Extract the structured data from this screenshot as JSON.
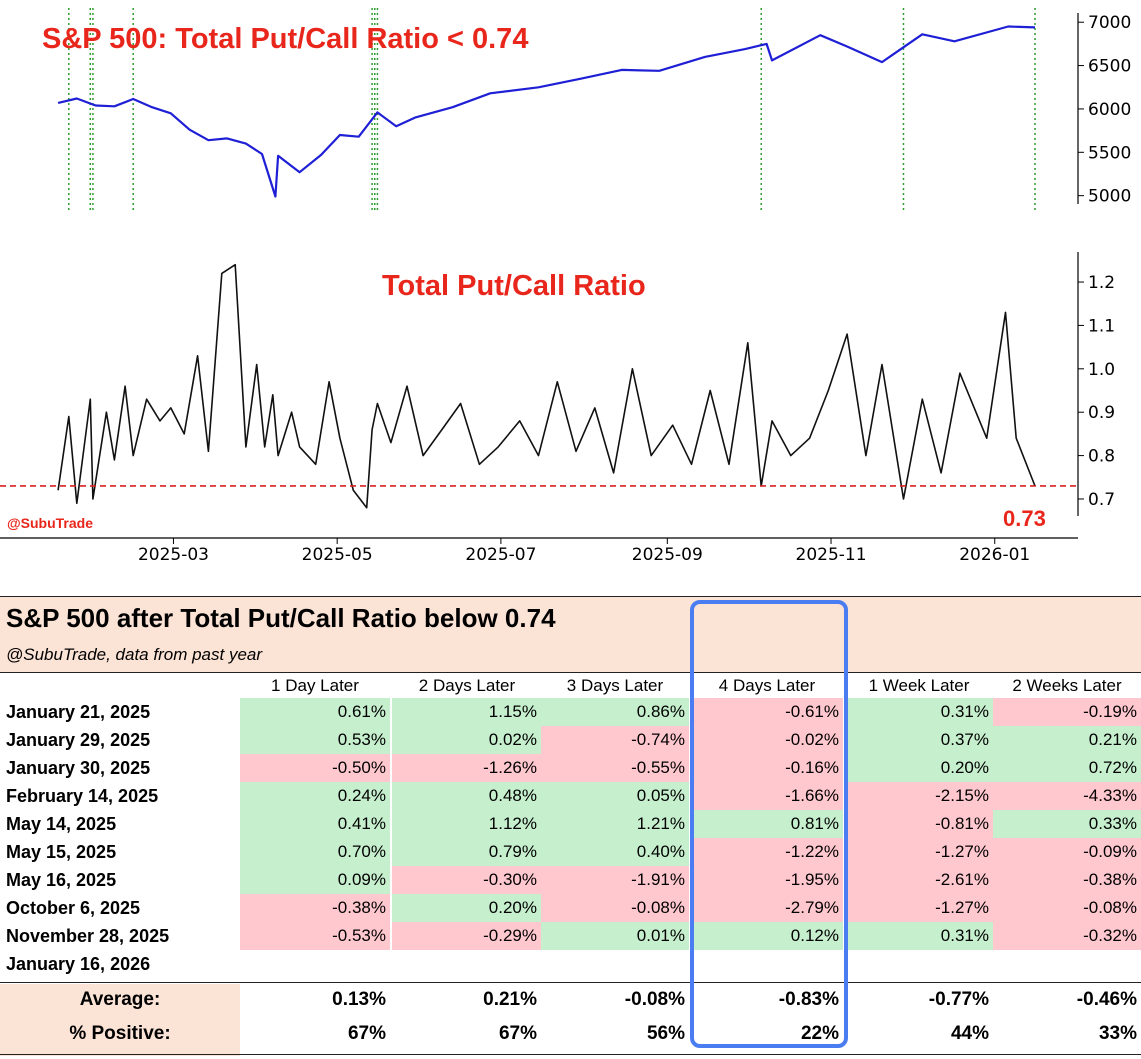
{
  "chart_data": [
    {
      "type": "line",
      "title": "S&P 500: Total Put/Call Ratio < 0.74",
      "series": [
        {
          "name": "S&P 500",
          "color": "#1f1fd6"
        }
      ],
      "x": [
        "2025-01-17",
        "2025-01-24",
        "2025-01-31",
        "2025-02-07",
        "2025-02-14",
        "2025-02-21",
        "2025-02-28",
        "2025-03-07",
        "2025-03-14",
        "2025-03-21",
        "2025-03-28",
        "2025-04-03",
        "2025-04-08",
        "2025-04-09",
        "2025-04-17",
        "2025-04-25",
        "2025-05-02",
        "2025-05-09",
        "2025-05-16",
        "2025-05-23",
        "2025-05-30",
        "2025-06-13",
        "2025-06-27",
        "2025-07-15",
        "2025-07-31",
        "2025-08-15",
        "2025-08-29",
        "2025-09-15",
        "2025-09-30",
        "2025-10-08",
        "2025-10-10",
        "2025-10-28",
        "2025-11-07",
        "2025-11-20",
        "2025-12-05",
        "2025-12-17",
        "2026-01-06",
        "2026-01-16"
      ],
      "values": [
        6070,
        6120,
        6040,
        6030,
        6115,
        6020,
        5950,
        5760,
        5640,
        5660,
        5600,
        5480,
        4990,
        5460,
        5270,
        5470,
        5700,
        5680,
        5960,
        5800,
        5900,
        6020,
        6180,
        6250,
        6350,
        6450,
        6440,
        6600,
        6690,
        6750,
        6560,
        6850,
        6720,
        6540,
        6860,
        6780,
        6950,
        6940
      ],
      "y_ticks": [
        5000,
        5500,
        6000,
        6500,
        7000
      ],
      "ylim": [
        4950,
        7060
      ],
      "markers": [
        "2025-01-21",
        "2025-01-29",
        "2025-01-30",
        "2025-02-14",
        "2025-05-14",
        "2025-05-15",
        "2025-05-16",
        "2025-10-06",
        "2025-11-28",
        "2026-01-16"
      ]
    },
    {
      "type": "line",
      "title": "Total Put/Call Ratio",
      "series": [
        {
          "name": "Total Put/Call Ratio",
          "color": "#111111"
        }
      ],
      "x": [
        "2025-01-17",
        "2025-01-21",
        "2025-01-24",
        "2025-01-29",
        "2025-01-30",
        "2025-02-04",
        "2025-02-07",
        "2025-02-11",
        "2025-02-14",
        "2025-02-19",
        "2025-02-24",
        "2025-02-28",
        "2025-03-05",
        "2025-03-10",
        "2025-03-14",
        "2025-03-19",
        "2025-03-24",
        "2025-03-28",
        "2025-04-01",
        "2025-04-04",
        "2025-04-07",
        "2025-04-09",
        "2025-04-14",
        "2025-04-17",
        "2025-04-23",
        "2025-04-28",
        "2025-05-02",
        "2025-05-07",
        "2025-05-12",
        "2025-05-14",
        "2025-05-16",
        "2025-05-21",
        "2025-05-27",
        "2025-06-02",
        "2025-06-09",
        "2025-06-16",
        "2025-06-23",
        "2025-06-30",
        "2025-07-08",
        "2025-07-15",
        "2025-07-22",
        "2025-07-29",
        "2025-08-05",
        "2025-08-12",
        "2025-08-19",
        "2025-08-26",
        "2025-09-03",
        "2025-09-10",
        "2025-09-17",
        "2025-09-24",
        "2025-10-01",
        "2025-10-06",
        "2025-10-10",
        "2025-10-17",
        "2025-10-24",
        "2025-10-31",
        "2025-11-07",
        "2025-11-14",
        "2025-11-20",
        "2025-11-28",
        "2025-12-05",
        "2025-12-12",
        "2025-12-19",
        "2025-12-29",
        "2026-01-05",
        "2026-01-09",
        "2026-01-16"
      ],
      "values": [
        0.72,
        0.89,
        0.69,
        0.93,
        0.7,
        0.9,
        0.79,
        0.96,
        0.8,
        0.93,
        0.88,
        0.91,
        0.85,
        1.03,
        0.81,
        1.22,
        1.24,
        0.82,
        1.01,
        0.82,
        0.94,
        0.8,
        0.9,
        0.82,
        0.78,
        0.97,
        0.84,
        0.72,
        0.68,
        0.86,
        0.92,
        0.83,
        0.96,
        0.8,
        0.86,
        0.92,
        0.78,
        0.82,
        0.88,
        0.8,
        0.97,
        0.81,
        0.91,
        0.76,
        1.0,
        0.8,
        0.87,
        0.78,
        0.95,
        0.78,
        1.06,
        0.73,
        0.88,
        0.8,
        0.84,
        0.95,
        1.08,
        0.8,
        1.01,
        0.7,
        0.93,
        0.76,
        0.99,
        0.84,
        1.13,
        0.84,
        0.73
      ],
      "y_ticks": [
        0.7,
        0.8,
        0.9,
        1.0,
        1.1,
        1.2
      ],
      "ylim": [
        0.67,
        1.26
      ],
      "threshold": 0.73,
      "threshold_label": "0.73",
      "watermark": "@SubuTrade",
      "x_ticks": [
        "2025-03",
        "2025-05",
        "2025-07",
        "2025-09",
        "2025-11",
        "2026-01"
      ]
    }
  ],
  "table": {
    "title": "S&P 500 after Total Put/Call Ratio below 0.74",
    "subtitle": "@SubuTrade, data from past year",
    "columns": [
      "1 Day Later",
      "2 Days Later",
      "3 Days Later",
      "4 Days Later",
      "1 Week Later",
      "2 Weeks Later"
    ],
    "rows": [
      {
        "date": "January 21, 2025",
        "values": [
          "0.61%",
          "1.15%",
          "0.86%",
          "-0.61%",
          "0.31%",
          "-0.19%"
        ]
      },
      {
        "date": "January 29, 2025",
        "values": [
          "0.53%",
          "0.02%",
          "-0.74%",
          "-0.02%",
          "0.37%",
          "0.21%"
        ]
      },
      {
        "date": "January 30, 2025",
        "values": [
          "-0.50%",
          "-1.26%",
          "-0.55%",
          "-0.16%",
          "0.20%",
          "0.72%"
        ]
      },
      {
        "date": "February 14, 2025",
        "values": [
          "0.24%",
          "0.48%",
          "0.05%",
          "-1.66%",
          "-2.15%",
          "-4.33%"
        ]
      },
      {
        "date": "May 14, 2025",
        "values": [
          "0.41%",
          "1.12%",
          "1.21%",
          "0.81%",
          "-0.81%",
          "0.33%"
        ]
      },
      {
        "date": "May 15, 2025",
        "values": [
          "0.70%",
          "0.79%",
          "0.40%",
          "-1.22%",
          "-1.27%",
          "-0.09%"
        ]
      },
      {
        "date": "May 16, 2025",
        "values": [
          "0.09%",
          "-0.30%",
          "-1.91%",
          "-1.95%",
          "-2.61%",
          "-0.38%"
        ]
      },
      {
        "date": "October 6, 2025",
        "values": [
          "-0.38%",
          "0.20%",
          "-0.08%",
          "-2.79%",
          "-1.27%",
          "-0.08%"
        ]
      },
      {
        "date": "November 28, 2025",
        "values": [
          "-0.53%",
          "-0.29%",
          "0.01%",
          "0.12%",
          "0.31%",
          "-0.32%"
        ]
      },
      {
        "date": "January 16, 2026",
        "values": [
          "",
          "",
          "",
          "",
          "",
          ""
        ]
      }
    ],
    "average_label": "Average:",
    "average": [
      "0.13%",
      "0.21%",
      "-0.08%",
      "-0.83%",
      "-0.77%",
      "-0.46%"
    ],
    "positive_label": "% Positive:",
    "positive": [
      "67%",
      "67%",
      "56%",
      "22%",
      "44%",
      "33%"
    ],
    "highlight_column": "4 Days Later"
  },
  "colors": {
    "positive": "#c6efce",
    "negative": "#ffc7ce",
    "highlight": "#4a7df2",
    "title_red": "#e8261b"
  }
}
